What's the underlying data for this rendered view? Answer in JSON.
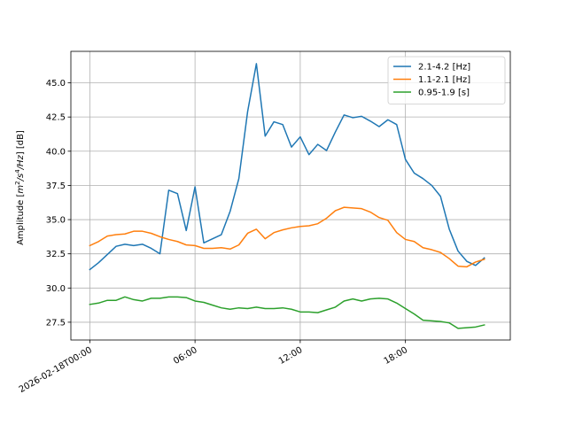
{
  "chart_data": {
    "type": "line",
    "ylabel": "Amplitude [$m^2/s^4/Hz$] [dB]",
    "ylabel_parts": {
      "prefix": "Amplitude [",
      "math": "m",
      "sup1": "2",
      "mid": "/s",
      "sup2": "4",
      "end": "/Hz",
      "suffix": "] [dB]"
    },
    "xlabel": "",
    "x_tick_values": [
      0,
      6,
      12,
      18
    ],
    "x_tick_labels": [
      "2026-02-18T00:00",
      "06:00",
      "12:00",
      "18:00"
    ],
    "y_tick_values": [
      27.5,
      30.0,
      32.5,
      35.0,
      37.5,
      40.0,
      42.5,
      45.0
    ],
    "y_tick_labels": [
      "27.5",
      "30.0",
      "32.5",
      "35.0",
      "37.5",
      "40.0",
      "42.5",
      "45.0"
    ],
    "xlim": [
      -1.08,
      23.98
    ],
    "ylim": [
      26.2,
      47.3
    ],
    "grid": true,
    "legend_position": "top-right",
    "series": [
      {
        "name": "2.1-4.2 [Hz]",
        "color": "#1f77b4",
        "x": [
          0,
          0.5,
          1,
          1.5,
          2,
          2.5,
          3,
          3.5,
          4,
          4.5,
          5,
          5.5,
          6,
          6.5,
          7,
          7.5,
          8,
          8.5,
          9,
          9.5,
          10,
          10.5,
          11,
          11.5,
          12,
          12.5,
          13,
          13.5,
          14,
          14.5,
          15,
          15.5,
          16,
          16.5,
          17,
          17.5,
          18,
          18.5,
          19,
          19.5,
          20,
          20.5,
          21,
          21.5,
          22,
          22.5
        ],
        "y": [
          31.35,
          31.85,
          32.45,
          33.05,
          33.2,
          33.1,
          33.2,
          32.9,
          32.5,
          37.15,
          36.9,
          34.2,
          37.4,
          33.3,
          33.6,
          33.9,
          35.6,
          38.0,
          42.9,
          46.4,
          41.1,
          42.15,
          41.95,
          40.3,
          41.05,
          39.75,
          40.5,
          40.05,
          41.4,
          42.65,
          42.45,
          42.55,
          42.2,
          41.8,
          42.3,
          41.95,
          39.4,
          38.4,
          38.0,
          37.5,
          36.7,
          34.3,
          32.7,
          31.95,
          31.65,
          32.2
        ]
      },
      {
        "name": "1.1-2.1 [Hz]",
        "color": "#ff7f0e",
        "x": [
          0,
          0.5,
          1,
          1.5,
          2,
          2.5,
          3,
          3.5,
          4,
          4.5,
          5,
          5.5,
          6,
          6.5,
          7,
          7.5,
          8,
          8.5,
          9,
          9.5,
          10,
          10.5,
          11,
          11.5,
          12,
          12.5,
          13,
          13.5,
          14,
          14.5,
          15,
          15.5,
          16,
          16.5,
          17,
          17.5,
          18,
          18.5,
          19,
          19.5,
          20,
          20.5,
          21,
          21.5,
          22,
          22.5
        ],
        "y": [
          33.1,
          33.4,
          33.8,
          33.9,
          33.95,
          34.15,
          34.15,
          34.0,
          33.75,
          33.55,
          33.4,
          33.15,
          33.1,
          32.9,
          32.9,
          32.95,
          32.85,
          33.15,
          34.0,
          34.3,
          33.6,
          34.05,
          34.25,
          34.4,
          34.5,
          34.55,
          34.7,
          35.1,
          35.65,
          35.9,
          35.85,
          35.8,
          35.55,
          35.15,
          34.95,
          34.05,
          33.55,
          33.4,
          32.95,
          32.8,
          32.6,
          32.15,
          31.6,
          31.55,
          31.9,
          32.1
        ]
      },
      {
        "name": "0.95-1.9 [s]",
        "color": "#2ca02c",
        "x": [
          0,
          0.5,
          1,
          1.5,
          2,
          2.5,
          3,
          3.5,
          4,
          4.5,
          5,
          5.5,
          6,
          6.5,
          7,
          7.5,
          8,
          8.5,
          9,
          9.5,
          10,
          10.5,
          11,
          11.5,
          12,
          12.5,
          13,
          13.5,
          14,
          14.5,
          15,
          15.5,
          16,
          16.5,
          17,
          17.5,
          18,
          18.5,
          19,
          19.5,
          20,
          20.5,
          21,
          21.5,
          22,
          22.5
        ],
        "y": [
          28.8,
          28.9,
          29.1,
          29.1,
          29.35,
          29.15,
          29.05,
          29.25,
          29.25,
          29.35,
          29.35,
          29.3,
          29.05,
          28.95,
          28.75,
          28.55,
          28.45,
          28.55,
          28.5,
          28.6,
          28.5,
          28.5,
          28.55,
          28.45,
          28.25,
          28.25,
          28.2,
          28.4,
          28.6,
          29.05,
          29.2,
          29.05,
          29.2,
          29.25,
          29.2,
          28.9,
          28.5,
          28.1,
          27.65,
          27.6,
          27.55,
          27.45,
          27.05,
          27.1,
          27.15,
          27.3
        ]
      }
    ]
  }
}
